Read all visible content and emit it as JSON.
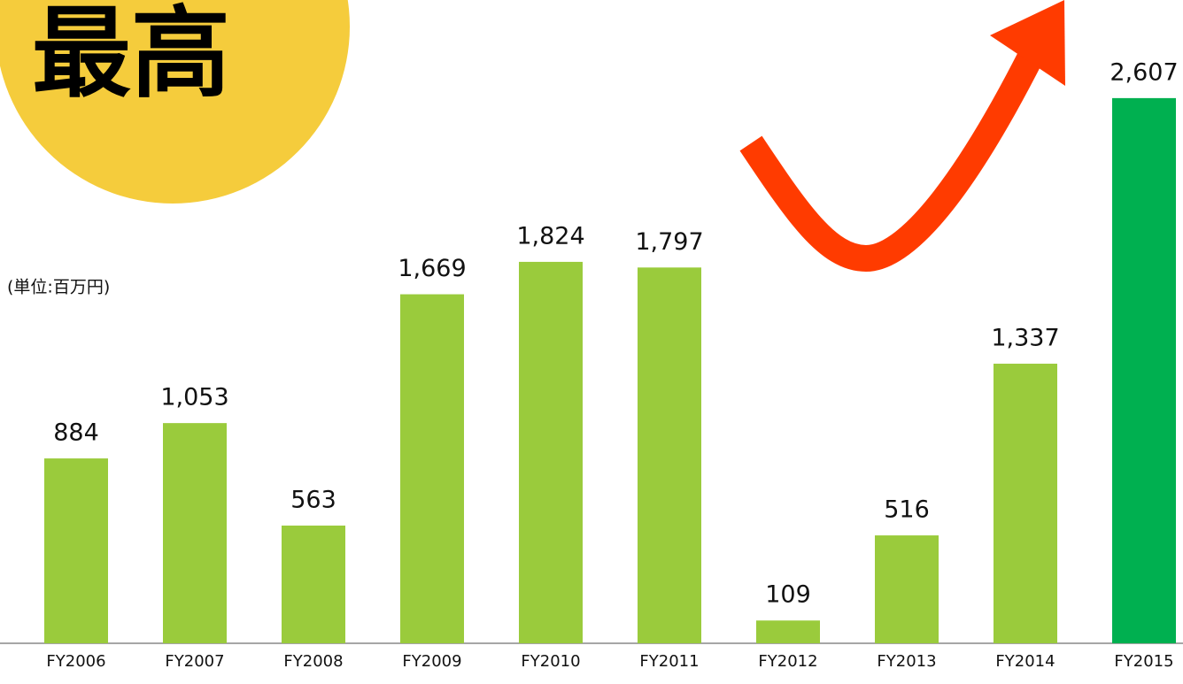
{
  "chart_data": {
    "type": "bar",
    "badge": "最高",
    "unit_label": "(単位:百万円)",
    "categories": [
      "FY2006",
      "FY2007",
      "FY2008",
      "FY2009",
      "FY2010",
      "FY2011",
      "FY2012",
      "FY2013",
      "FY2014",
      "FY2015"
    ],
    "values": [
      884,
      1053,
      563,
      1669,
      1824,
      1797,
      109,
      516,
      1337,
      2607
    ],
    "value_labels": [
      "884",
      "1,053",
      "563",
      "1,669",
      "1,824",
      "1,797",
      "109",
      "516",
      "1,337",
      "2,607"
    ],
    "colors": [
      "#9acb3c",
      "#9acb3c",
      "#9acb3c",
      "#9acb3c",
      "#9acb3c",
      "#9acb3c",
      "#9acb3c",
      "#9acb3c",
      "#9acb3c",
      "#00b050"
    ],
    "ylim": [
      0,
      3000
    ]
  }
}
